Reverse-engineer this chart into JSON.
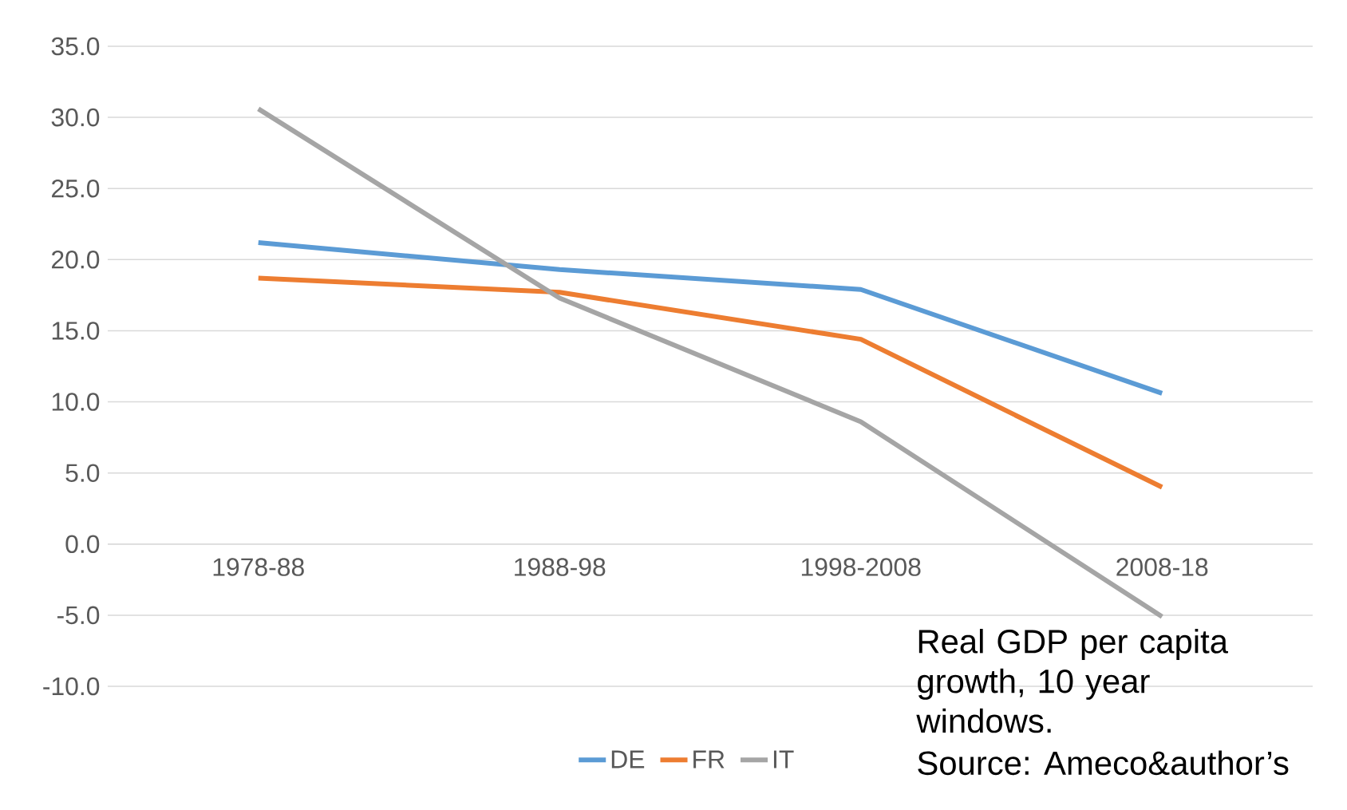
{
  "chart_data": {
    "type": "line",
    "categories": [
      "1978-88",
      "1988-98",
      "1998-2008",
      "2008-18"
    ],
    "series": [
      {
        "name": "DE",
        "color": "#5b9bd5",
        "values": [
          21.2,
          19.3,
          17.9,
          10.6
        ]
      },
      {
        "name": "FR",
        "color": "#ed7d31",
        "values": [
          18.7,
          17.7,
          14.4,
          4.0
        ]
      },
      {
        "name": "IT",
        "color": "#a5a5a5",
        "values": [
          30.6,
          17.3,
          8.6,
          -5.1
        ]
      }
    ],
    "ylim": [
      -10,
      35
    ],
    "yticks": [
      {
        "value": -10,
        "label": "-10.0"
      },
      {
        "value": -5,
        "label": "-5.0"
      },
      {
        "value": 0,
        "label": "0.0"
      },
      {
        "value": 5,
        "label": "5.0"
      },
      {
        "value": 10,
        "label": "10.0"
      },
      {
        "value": 15,
        "label": "15.0"
      },
      {
        "value": 20,
        "label": "20.0"
      },
      {
        "value": 25,
        "label": "25.0"
      },
      {
        "value": 30,
        "label": "30.0"
      },
      {
        "value": 35,
        "label": "35.0"
      }
    ],
    "grid": "y",
    "legend": "bottom",
    "marker": "none",
    "line_style": "solid",
    "annotations": [
      "Real GDP per capita growth, 10 year windows.",
      "Source: Ameco&author’s"
    ]
  }
}
